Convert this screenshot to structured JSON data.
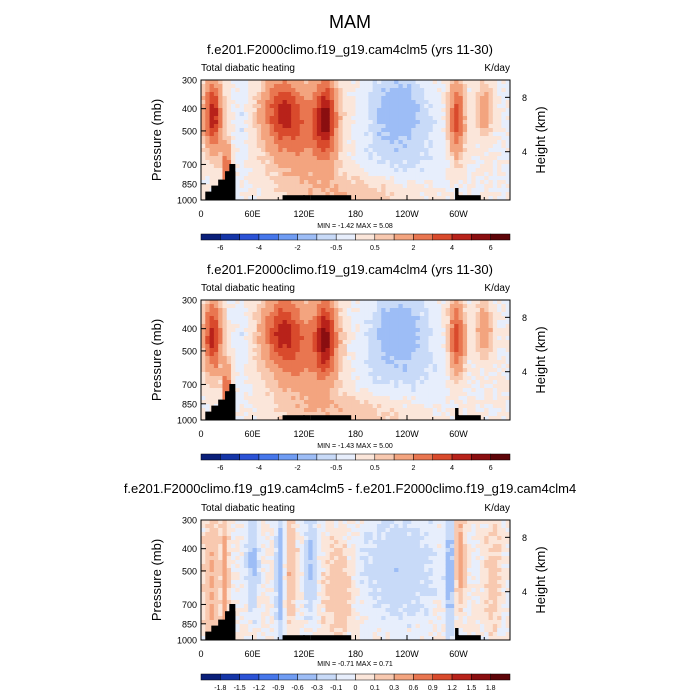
{
  "figure": {
    "season_title": "MAM"
  },
  "colors": {
    "land_mask": "#000000",
    "frame": "#000000"
  },
  "chart_data": [
    {
      "type": "heatmap",
      "title": "f.e201.F2000climo.f19_g19.cam4clm5 (yrs 11-30)",
      "left_label": "Total diabatic heating",
      "right_label": "K/day",
      "ylabel": "Pressure (mb)",
      "right_axis_label": "Height (km)",
      "y_ticks": [
        "300",
        "400",
        "500",
        "700",
        "850",
        "1000"
      ],
      "y_tick_values": [
        300,
        400,
        500,
        700,
        850,
        1000
      ],
      "right_ticks": [
        "8",
        "4"
      ],
      "right_tick_values_km": [
        8,
        4
      ],
      "x_ticks": [
        "0",
        "60E",
        "120E",
        "180",
        "120W",
        "60W"
      ],
      "x_tick_values_lon": [
        0,
        60,
        120,
        180,
        240,
        300
      ],
      "xlim_lon": [
        0,
        360
      ],
      "ylim_mb": [
        300,
        1000
      ],
      "stats": "MIN = -1.42  MAX =  5.08",
      "min": -1.42,
      "max": 5.08,
      "colorbar_labels": [
        "-6",
        "-4",
        "-2",
        "-0.5",
        "0.5",
        "2",
        "4",
        "6"
      ],
      "levels": [
        -6,
        -5,
        -4,
        -3,
        -2,
        -1,
        -0.5,
        0,
        0.5,
        1,
        2,
        3,
        4,
        5,
        6
      ],
      "field": "positive"
    },
    {
      "type": "heatmap",
      "title": "f.e201.F2000climo.f19_g19.cam4clm4 (yrs 11-30)",
      "left_label": "Total diabatic heating",
      "right_label": "K/day",
      "ylabel": "Pressure (mb)",
      "right_axis_label": "Height (km)",
      "y_ticks": [
        "300",
        "400",
        "500",
        "700",
        "850",
        "1000"
      ],
      "y_tick_values": [
        300,
        400,
        500,
        700,
        850,
        1000
      ],
      "right_ticks": [
        "8",
        "4"
      ],
      "right_tick_values_km": [
        8,
        4
      ],
      "x_ticks": [
        "0",
        "60E",
        "120E",
        "180",
        "120W",
        "60W"
      ],
      "x_tick_values_lon": [
        0,
        60,
        120,
        180,
        240,
        300
      ],
      "xlim_lon": [
        0,
        360
      ],
      "ylim_mb": [
        300,
        1000
      ],
      "stats": "MIN = -1.43  MAX =  5.00",
      "min": -1.43,
      "max": 5.0,
      "colorbar_labels": [
        "-6",
        "-4",
        "-2",
        "-0.5",
        "0.5",
        "2",
        "4",
        "6"
      ],
      "levels": [
        -6,
        -5,
        -4,
        -3,
        -2,
        -1,
        -0.5,
        0,
        0.5,
        1,
        2,
        3,
        4,
        5,
        6
      ],
      "field": "positive"
    },
    {
      "type": "heatmap",
      "title": "f.e201.F2000climo.f19_g19.cam4clm5 - f.e201.F2000climo.f19_g19.cam4clm4",
      "left_label": "Total diabatic heating",
      "right_label": "K/day",
      "ylabel": "Pressure (mb)",
      "right_axis_label": "Height (km)",
      "y_ticks": [
        "300",
        "400",
        "500",
        "700",
        "850",
        "1000"
      ],
      "y_tick_values": [
        300,
        400,
        500,
        700,
        850,
        1000
      ],
      "right_ticks": [
        "8",
        "4"
      ],
      "right_tick_values_km": [
        8,
        4
      ],
      "x_ticks": [
        "0",
        "60E",
        "120E",
        "180",
        "120W",
        "60W"
      ],
      "x_tick_values_lon": [
        0,
        60,
        120,
        180,
        240,
        300
      ],
      "xlim_lon": [
        0,
        360
      ],
      "ylim_mb": [
        300,
        1000
      ],
      "stats": "MIN = -0.71  MAX =  0.71",
      "min": -0.71,
      "max": 0.71,
      "colorbar_labels": [
        "-1.8",
        "-1.5",
        "-1.2",
        "-0.9",
        "-0.6",
        "-0.3",
        "-0.1",
        "0",
        "0.1",
        "0.3",
        "0.6",
        "0.9",
        "1.2",
        "1.5",
        "1.8"
      ],
      "levels": [
        -1.8,
        -1.5,
        -1.2,
        -0.9,
        -0.6,
        -0.3,
        -0.1,
        0,
        0.1,
        0.3,
        0.6,
        0.9,
        1.2,
        1.5,
        1.8
      ],
      "field": "difference"
    }
  ],
  "palette": [
    "#0a1f7a",
    "#1535a8",
    "#2b52d6",
    "#4677eb",
    "#6f9cf3",
    "#9dbdf6",
    "#c8daf8",
    "#e7eefc",
    "#fbe6da",
    "#f8c9b0",
    "#f3a47f",
    "#e97650",
    "#d94a2c",
    "#b8221a",
    "#8a0e10",
    "#5e0408"
  ]
}
